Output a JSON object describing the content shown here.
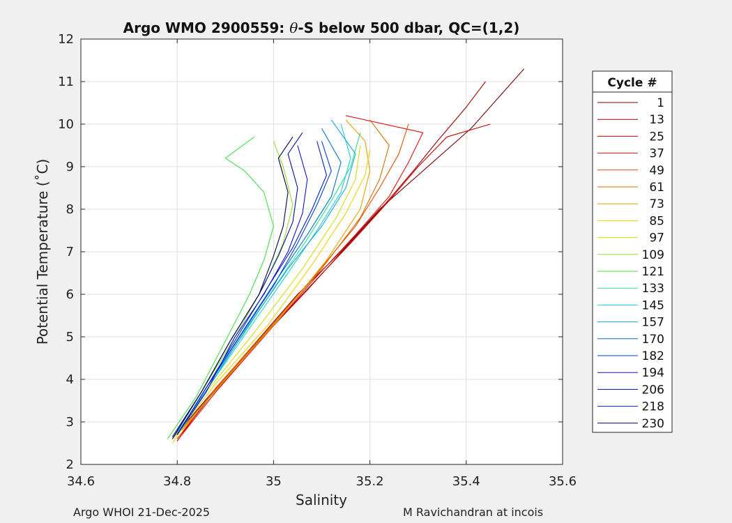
{
  "chart_data": {
    "type": "line",
    "title": "Argo WMO 2900559: θ-S below 500 dbar,  QC=(1,2)",
    "title_parts": {
      "prefix": "Argo WMO 2900559: ",
      "symbol": "θ",
      "suffix": "-S below 500 dbar,  QC=(1,2)"
    },
    "xlabel": "Salinity",
    "ylabel": "Potential Temperature (˚C)",
    "xlim": [
      34.6,
      35.6
    ],
    "ylim": [
      2,
      12
    ],
    "xticks": [
      34.6,
      34.8,
      35,
      35.2,
      35.4,
      35.6
    ],
    "xtick_labels": [
      "34.6",
      "34.8",
      "35",
      "35.2",
      "35.4",
      "35.6"
    ],
    "yticks": [
      2,
      3,
      4,
      5,
      6,
      7,
      8,
      9,
      10,
      11,
      12
    ],
    "ytick_labels": [
      "2",
      "3",
      "4",
      "5",
      "6",
      "7",
      "8",
      "9",
      "10",
      "11",
      "12"
    ],
    "grid": true,
    "legend": {
      "title": "Cycle #",
      "placement": "outside-right",
      "entries": [
        {
          "label": "1",
          "color": "#7a0000"
        },
        {
          "label": "13",
          "color": "#a00000"
        },
        {
          "label": "25",
          "color": "#c80000"
        },
        {
          "label": "37",
          "color": "#e01010"
        },
        {
          "label": "49",
          "color": "#e84a00"
        },
        {
          "label": "61",
          "color": "#d07000"
        },
        {
          "label": "73",
          "color": "#e8a000"
        },
        {
          "label": "85",
          "color": "#f0d000"
        },
        {
          "label": "97",
          "color": "#d0e000"
        },
        {
          "label": "109",
          "color": "#90e030"
        },
        {
          "label": "121",
          "color": "#40e040"
        },
        {
          "label": "133",
          "color": "#30e090"
        },
        {
          "label": "145",
          "color": "#20d0d0"
        },
        {
          "label": "157",
          "color": "#10a8e0"
        },
        {
          "label": "170",
          "color": "#0070d0"
        },
        {
          "label": "182",
          "color": "#0040e0"
        },
        {
          "label": "194",
          "color": "#1010d0"
        },
        {
          "label": "206",
          "color": "#0010a0"
        },
        {
          "label": "218",
          "color": "#0020c0"
        },
        {
          "label": "230",
          "color": "#000050"
        }
      ]
    },
    "series": [
      {
        "name": "1",
        "color": "#7a0000",
        "profiles": [
          [
            [
              34.79,
              2.6
            ],
            [
              34.85,
              3.4
            ],
            [
              34.95,
              4.7
            ],
            [
              35.05,
              6.0
            ],
            [
              35.14,
              7.0
            ],
            [
              35.22,
              8.0
            ],
            [
              35.29,
              8.7
            ],
            [
              35.35,
              9.3
            ],
            [
              35.41,
              9.9
            ],
            [
              35.52,
              11.3
            ]
          ]
        ]
      },
      {
        "name": "13",
        "color": "#a00000",
        "profiles": [
          [
            [
              34.8,
              2.6
            ],
            [
              34.87,
              3.6
            ],
            [
              34.97,
              4.9
            ],
            [
              35.07,
              6.1
            ],
            [
              35.15,
              7.1
            ],
            [
              35.23,
              8.1
            ],
            [
              35.29,
              8.9
            ],
            [
              35.34,
              9.6
            ],
            [
              35.4,
              10.4
            ],
            [
              35.44,
              11.0
            ]
          ]
        ]
      },
      {
        "name": "25",
        "color": "#c80000",
        "profiles": [
          [
            [
              34.8,
              2.55
            ],
            [
              34.86,
              3.5
            ],
            [
              34.96,
              4.8
            ],
            [
              35.06,
              6.0
            ],
            [
              35.16,
              7.2
            ],
            [
              35.24,
              8.2
            ],
            [
              35.3,
              9.0
            ],
            [
              35.36,
              9.7
            ],
            [
              35.45,
              10.0
            ]
          ]
        ]
      },
      {
        "name": "37",
        "color": "#e01010",
        "profiles": [
          [
            [
              34.81,
              2.7
            ],
            [
              34.88,
              3.7
            ],
            [
              34.98,
              5.0
            ],
            [
              35.08,
              6.3
            ],
            [
              35.17,
              7.4
            ],
            [
              35.24,
              8.3
            ],
            [
              35.28,
              9.1
            ],
            [
              35.31,
              9.8
            ],
            [
              35.15,
              10.2
            ]
          ]
        ]
      },
      {
        "name": "49",
        "color": "#e84a00",
        "profiles": [
          [
            [
              34.8,
              2.6
            ],
            [
              34.88,
              3.8
            ],
            [
              34.99,
              5.2
            ],
            [
              35.09,
              6.5
            ],
            [
              35.17,
              7.6
            ],
            [
              35.22,
              8.5
            ],
            [
              35.26,
              9.3
            ],
            [
              35.28,
              10.0
            ]
          ]
        ]
      },
      {
        "name": "61",
        "color": "#d07000",
        "profiles": [
          [
            [
              34.8,
              2.7
            ],
            [
              34.89,
              3.9
            ],
            [
              35.0,
              5.3
            ],
            [
              35.1,
              6.6
            ],
            [
              35.18,
              7.8
            ],
            [
              35.22,
              8.7
            ],
            [
              35.24,
              9.5
            ],
            [
              35.2,
              10.1
            ]
          ]
        ]
      },
      {
        "name": "73",
        "color": "#e8a000",
        "profiles": [
          [
            [
              34.81,
              2.8
            ],
            [
              34.9,
              4.0
            ],
            [
              35.01,
              5.4
            ],
            [
              35.11,
              6.8
            ],
            [
              35.18,
              8.0
            ],
            [
              35.2,
              8.9
            ],
            [
              35.19,
              9.6
            ],
            [
              35.15,
              10.1
            ]
          ]
        ]
      },
      {
        "name": "85",
        "color": "#f0d000",
        "profiles": [
          [
            [
              34.79,
              2.6
            ],
            [
              34.88,
              3.9
            ],
            [
              34.99,
              5.3
            ],
            [
              35.08,
              6.7
            ],
            [
              35.15,
              7.9
            ],
            [
              35.19,
              8.8
            ],
            [
              35.2,
              9.4
            ]
          ]
        ]
      },
      {
        "name": "97",
        "color": "#d0e000",
        "profiles": [
          [
            [
              34.79,
              2.5
            ],
            [
              34.86,
              3.7
            ],
            [
              34.96,
              5.1
            ],
            [
              35.06,
              6.6
            ],
            [
              35.13,
              7.8
            ],
            [
              35.17,
              8.7
            ],
            [
              35.18,
              9.5
            ]
          ]
        ]
      },
      {
        "name": "109",
        "color": "#90e030",
        "profiles": [
          [
            [
              34.79,
              2.6
            ],
            [
              34.85,
              3.7
            ],
            [
              34.92,
              5.0
            ],
            [
              34.98,
              6.2
            ],
            [
              35.02,
              7.2
            ],
            [
              35.04,
              8.1
            ],
            [
              35.02,
              9.0
            ],
            [
              35.0,
              9.6
            ]
          ]
        ]
      },
      {
        "name": "121",
        "color": "#40e040",
        "profiles": [
          [
            [
              34.78,
              2.6
            ],
            [
              34.84,
              3.6
            ],
            [
              34.9,
              4.9
            ],
            [
              34.95,
              6.0
            ],
            [
              34.98,
              6.8
            ],
            [
              35.0,
              7.6
            ],
            [
              34.98,
              8.4
            ],
            [
              34.94,
              8.9
            ],
            [
              34.9,
              9.2
            ],
            [
              34.96,
              9.7
            ]
          ]
        ]
      },
      {
        "name": "133",
        "color": "#30e090",
        "profiles": [
          [
            [
              34.8,
              2.7
            ],
            [
              34.86,
              3.8
            ],
            [
              34.94,
              5.1
            ],
            [
              35.01,
              6.3
            ],
            [
              35.07,
              7.3
            ],
            [
              35.12,
              8.2
            ],
            [
              35.16,
              9.0
            ],
            [
              35.18,
              9.8
            ]
          ]
        ]
      },
      {
        "name": "145",
        "color": "#20d0d0",
        "profiles": [
          [
            [
              34.8,
              2.7
            ],
            [
              34.87,
              3.9
            ],
            [
              34.95,
              5.2
            ],
            [
              35.03,
              6.5
            ],
            [
              35.09,
              7.5
            ],
            [
              35.14,
              8.4
            ],
            [
              35.16,
              9.2
            ],
            [
              35.14,
              10.0
            ]
          ]
        ]
      },
      {
        "name": "157",
        "color": "#10a8e0",
        "profiles": [
          [
            [
              34.8,
              2.75
            ],
            [
              34.87,
              3.9
            ],
            [
              34.95,
              5.3
            ],
            [
              35.03,
              6.6
            ],
            [
              35.1,
              7.6
            ],
            [
              35.15,
              8.5
            ],
            [
              35.17,
              9.3
            ],
            [
              35.12,
              10.1
            ]
          ]
        ]
      },
      {
        "name": "170",
        "color": "#0070d0",
        "profiles": [
          [
            [
              34.8,
              2.7
            ],
            [
              34.86,
              3.8
            ],
            [
              34.94,
              5.2
            ],
            [
              35.01,
              6.4
            ],
            [
              35.07,
              7.4
            ],
            [
              35.12,
              8.3
            ],
            [
              35.14,
              9.1
            ],
            [
              35.1,
              9.9
            ]
          ]
        ]
      },
      {
        "name": "182",
        "color": "#0040e0",
        "profiles": [
          [
            [
              34.8,
              2.7
            ],
            [
              34.86,
              3.8
            ],
            [
              34.93,
              5.0
            ],
            [
              35.0,
              6.2
            ],
            [
              35.05,
              7.2
            ],
            [
              35.09,
              8.1
            ],
            [
              35.12,
              8.9
            ],
            [
              35.1,
              9.6
            ]
          ]
        ]
      },
      {
        "name": "194",
        "color": "#1010d0",
        "profiles": [
          [
            [
              34.8,
              2.7
            ],
            [
              34.86,
              3.7
            ],
            [
              34.92,
              5.0
            ],
            [
              34.98,
              6.0
            ],
            [
              35.03,
              7.0
            ],
            [
              35.06,
              7.9
            ],
            [
              35.07,
              8.7
            ],
            [
              35.05,
              9.5
            ]
          ]
        ]
      },
      {
        "name": "206",
        "color": "#0010a0",
        "profiles": [
          [
            [
              34.79,
              2.65
            ],
            [
              34.85,
              3.7
            ],
            [
              34.91,
              4.9
            ],
            [
              34.97,
              6.0
            ],
            [
              35.01,
              6.9
            ],
            [
              35.04,
              7.7
            ],
            [
              35.05,
              8.5
            ],
            [
              35.03,
              9.3
            ],
            [
              35.06,
              9.8
            ]
          ]
        ]
      },
      {
        "name": "218",
        "color": "#0020c0",
        "profiles": [
          [
            [
              34.8,
              2.7
            ],
            [
              34.86,
              3.8
            ],
            [
              34.93,
              5.1
            ],
            [
              34.99,
              6.2
            ],
            [
              35.04,
              7.1
            ],
            [
              35.08,
              8.0
            ],
            [
              35.11,
              8.8
            ],
            [
              35.09,
              9.6
            ]
          ]
        ]
      },
      {
        "name": "230",
        "color": "#000050",
        "profiles": [
          [
            [
              34.79,
              2.6
            ],
            [
              34.85,
              3.7
            ],
            [
              34.91,
              4.9
            ],
            [
              34.97,
              6.0
            ],
            [
              35.0,
              6.9
            ],
            [
              35.02,
              7.6
            ],
            [
              35.03,
              8.4
            ],
            [
              35.01,
              9.2
            ],
            [
              35.04,
              9.7
            ]
          ]
        ]
      }
    ]
  },
  "footer": {
    "left": "Argo WHOI 21-Dec-2025",
    "right": "M Ravichandran at incois"
  }
}
